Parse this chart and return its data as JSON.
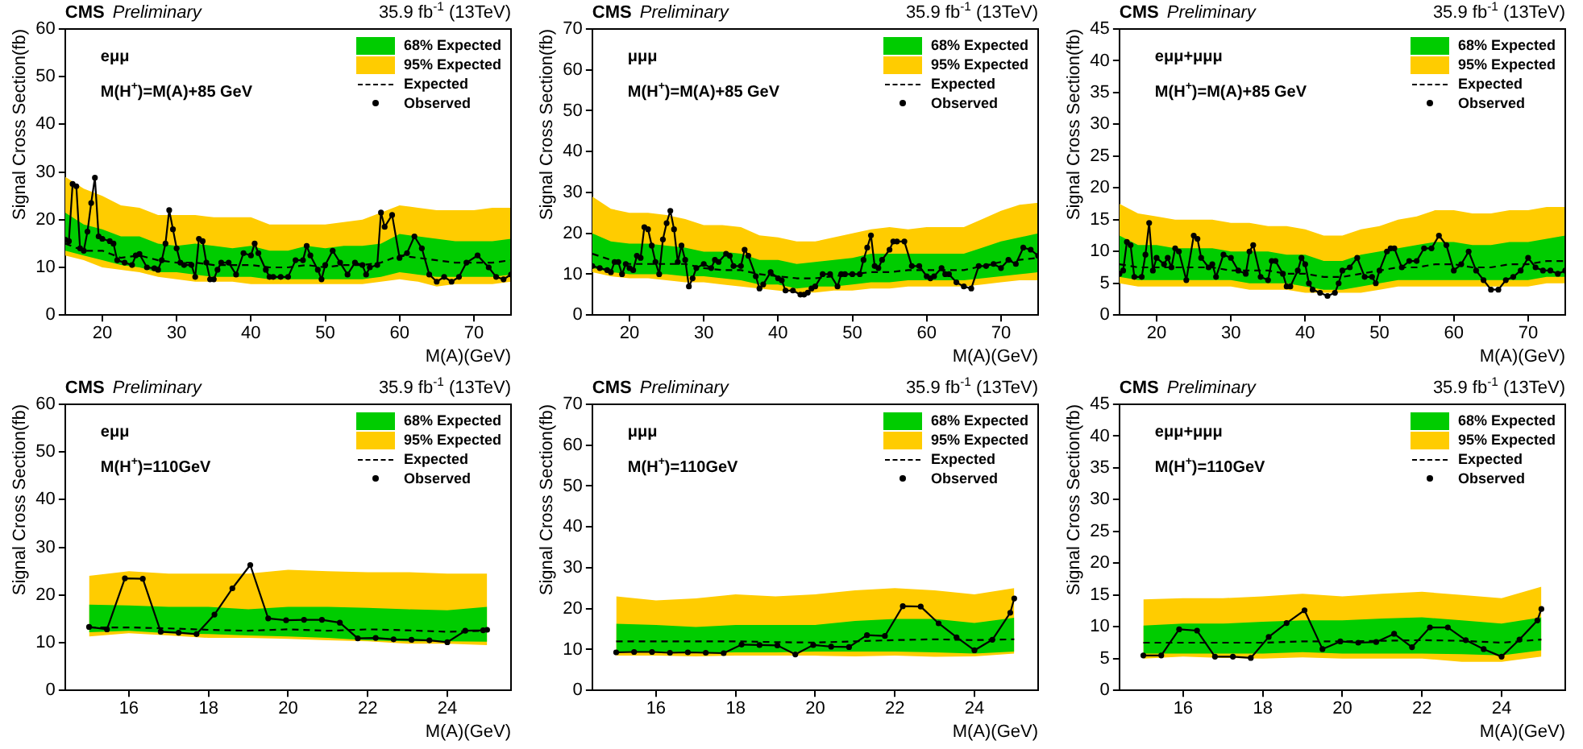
{
  "chart_data": [
    {
      "type": "line",
      "title": "CMS",
      "subtitle": "Preliminary",
      "xlabel": "M(A)(GeV)",
      "ylabel": "Signal Cross Section(fb)",
      "annotations": [
        "35.9 fb$^{-1}$ (13TeV)",
        "eμμ",
        "M(H$^{+}$)=M(A)+85 GeV"
      ],
      "xlim": [
        15,
        75
      ],
      "xticks": [
        20,
        30,
        40,
        50,
        60,
        70
      ],
      "ylim": [
        0,
        60
      ],
      "yticks": [
        0,
        10,
        20,
        30,
        40,
        50,
        60
      ],
      "grid": false,
      "legend": "top right",
      "series": [
        {
          "name": "68% Expected",
          "type": "line",
          "color": "#00cc00",
          "x": [
            15,
            17.5,
            20,
            22.5,
            25,
            27.5,
            30,
            32.5,
            35,
            37.5,
            40,
            42.5,
            45,
            47.5,
            50,
            52.5,
            55,
            57.5,
            60,
            62.5,
            65,
            67.5,
            70,
            72.5,
            75
          ],
          "values": [
            null,
            null,
            null,
            null,
            null,
            null,
            null,
            null,
            null,
            null,
            null,
            null,
            null,
            null,
            null,
            null,
            null,
            null,
            null,
            null,
            null,
            null,
            null,
            null,
            null
          ],
          "lower": [
            13.5,
            12.5,
            11.5,
            10.5,
            10,
            9,
            9,
            8.5,
            8,
            8,
            8,
            7.5,
            7.5,
            7.5,
            7.5,
            7.5,
            7.5,
            8,
            9,
            8.5,
            8,
            8,
            8,
            8,
            8.5
          ],
          "upper": [
            21.5,
            19,
            18,
            16.5,
            16.5,
            15,
            14.5,
            15,
            14.5,
            14,
            14.5,
            13.5,
            13.5,
            14.5,
            14,
            14.5,
            14.5,
            15,
            17,
            16.5,
            16,
            15.5,
            15.5,
            15.5,
            16
          ]
        },
        {
          "name": "95% Expected",
          "type": "line",
          "color": "#ffcc00",
          "x": [
            15,
            17.5,
            20,
            22.5,
            25,
            27.5,
            30,
            32.5,
            35,
            37.5,
            40,
            42.5,
            45,
            47.5,
            50,
            52.5,
            55,
            57.5,
            60,
            62.5,
            65,
            67.5,
            70,
            72.5,
            75
          ],
          "values": [
            null,
            null,
            null,
            null,
            null,
            null,
            null,
            null,
            null,
            null,
            null,
            null,
            null,
            null,
            null,
            null,
            null,
            null,
            null,
            null,
            null,
            null,
            null,
            null,
            null
          ],
          "lower": [
            12.5,
            11.5,
            10,
            9.5,
            9,
            8,
            7.5,
            7,
            7,
            7,
            6.5,
            6.5,
            6.5,
            6.5,
            6.5,
            6.5,
            6.5,
            7,
            7.5,
            7,
            6,
            6.5,
            6.5,
            6.5,
            7
          ],
          "upper": [
            29,
            26.5,
            25,
            23,
            22.5,
            21,
            21,
            21,
            20.5,
            20.5,
            20.5,
            19,
            19,
            19,
            19,
            19.5,
            20,
            21.5,
            23,
            22.5,
            22,
            22,
            22,
            22.5,
            22.5
          ]
        },
        {
          "name": "Expected",
          "type": "line",
          "color": "#000000",
          "line_style": "dashed",
          "marker": "none",
          "x": [
            15,
            17.5,
            20,
            22.5,
            25,
            27.5,
            30,
            32.5,
            35,
            37.5,
            40,
            42.5,
            45,
            47.5,
            50,
            52.5,
            55,
            57.5,
            60,
            62.5,
            65,
            67.5,
            70,
            72.5,
            75
          ],
          "values": [
            15,
            13.5,
            13.5,
            12,
            12.5,
            11.5,
            11,
            11,
            10.5,
            10.5,
            10.5,
            10,
            10,
            10.5,
            10,
            10.5,
            10.5,
            11,
            12.5,
            12,
            11.5,
            11,
            11,
            11,
            11.5
          ]
        },
        {
          "name": "Observed",
          "type": "line",
          "color": "#000000",
          "line_style": "solid",
          "marker": "circle",
          "x": [
            15,
            15.5,
            16,
            16.5,
            17,
            17.5,
            18,
            18.5,
            19,
            19.5,
            20,
            21,
            21.5,
            22,
            23,
            24,
            24.5,
            25,
            26,
            27,
            27.5,
            28,
            28.5,
            29,
            29.5,
            30,
            30.5,
            31,
            32,
            32.5,
            33,
            33.5,
            34,
            34.5,
            35,
            35.5,
            36,
            37,
            38,
            39,
            40,
            40.5,
            41,
            42,
            42.5,
            43,
            44,
            45,
            46,
            47,
            47.5,
            48,
            49,
            49.5,
            50,
            51,
            52,
            53,
            54,
            55,
            55.5,
            56,
            57,
            57.5,
            58,
            59,
            60,
            61,
            62,
            63,
            64,
            65,
            66,
            67,
            68,
            69,
            70.5,
            72,
            73,
            74,
            75
          ],
          "values": [
            15.8,
            15.5,
            27.5,
            27,
            14,
            13.5,
            17.5,
            23.5,
            28.8,
            16.5,
            16,
            15.5,
            15,
            11.5,
            11,
            10.5,
            12.5,
            12.8,
            10,
            9.8,
            9.5,
            11.5,
            15,
            22,
            18,
            14,
            11,
            10.5,
            10.5,
            8,
            16,
            15.5,
            11,
            7.5,
            7.5,
            9.5,
            11,
            11,
            8.5,
            13,
            12.5,
            15,
            13,
            9.5,
            8,
            8,
            8,
            8,
            11.5,
            11.5,
            14.5,
            12.5,
            9.5,
            7.5,
            10.5,
            13.5,
            11,
            8.5,
            11,
            10.5,
            8.5,
            10,
            10.5,
            21.5,
            18.5,
            21,
            12,
            13,
            16.5,
            14,
            8.5,
            7,
            8,
            7,
            8,
            11,
            12.5,
            10,
            8,
            7.5,
            8.5
          ]
        }
      ]
    },
    {
      "type": "line",
      "title": "CMS",
      "subtitle": "Preliminary",
      "xlabel": "M(A)(GeV)",
      "ylabel": "Signal Cross Section(fb)",
      "annotations": [
        "35.9 fb$^{-1}$ (13TeV)",
        "μμμ",
        "M(H$^{+}$)=M(A)+85 GeV"
      ],
      "xlim": [
        15,
        75
      ],
      "xticks": [
        20,
        30,
        40,
        50,
        60,
        70
      ],
      "ylim": [
        0,
        70
      ],
      "yticks": [
        0,
        10,
        20,
        30,
        40,
        50,
        60,
        70
      ],
      "grid": false,
      "legend": "top right",
      "series": [
        {
          "name": "68% Expected",
          "type": "line",
          "color": "#00cc00",
          "x": [
            15,
            17.5,
            20,
            22.5,
            25,
            27.5,
            30,
            32.5,
            35,
            37.5,
            40,
            42.5,
            45,
            47.5,
            50,
            52.5,
            55,
            57.5,
            60,
            62.5,
            65,
            67.5,
            70,
            72.5,
            75
          ],
          "values": [
            null,
            null,
            null,
            null,
            null,
            null,
            null,
            null,
            null,
            null,
            null,
            null,
            null,
            null,
            null,
            null,
            null,
            null,
            null,
            null,
            null,
            null,
            null,
            null,
            null
          ],
          "lower": [
            11.5,
            10.5,
            10,
            10,
            10,
            9.5,
            9.5,
            9,
            8.5,
            7.5,
            7.5,
            6.5,
            7,
            7,
            7.5,
            8,
            8,
            8.5,
            8.5,
            8.5,
            8.5,
            9,
            9.5,
            10,
            10.5
          ],
          "upper": [
            20,
            18,
            17.5,
            17.5,
            17,
            16.5,
            15.5,
            15.5,
            15,
            13.5,
            13.5,
            12.5,
            13,
            13.5,
            14,
            15,
            15,
            15,
            15,
            15,
            15,
            16.5,
            18,
            19,
            20
          ]
        },
        {
          "name": "95% Expected",
          "type": "line",
          "color": "#ffcc00",
          "x": [
            15,
            17.5,
            20,
            22.5,
            25,
            27.5,
            30,
            32.5,
            35,
            37.5,
            40,
            42.5,
            45,
            47.5,
            50,
            52.5,
            55,
            57.5,
            60,
            62.5,
            65,
            67.5,
            70,
            72.5,
            75
          ],
          "values": [
            null,
            null,
            null,
            null,
            null,
            null,
            null,
            null,
            null,
            null,
            null,
            null,
            null,
            null,
            null,
            null,
            null,
            null,
            null,
            null,
            null,
            null,
            null,
            null,
            null
          ],
          "lower": [
            10.5,
            9.5,
            9,
            9,
            8.5,
            8,
            8,
            7.5,
            7,
            6.5,
            6,
            5.5,
            5.5,
            6,
            6,
            6.5,
            6.5,
            7,
            7,
            7,
            7,
            7.5,
            8,
            8.5,
            8.5
          ],
          "upper": [
            29,
            26,
            25,
            25,
            24.5,
            23.5,
            22,
            22,
            21.5,
            19.5,
            19,
            18,
            18,
            19,
            20,
            21,
            21.5,
            21,
            21.5,
            21.5,
            21.5,
            23.5,
            25.5,
            27,
            27.5
          ]
        },
        {
          "name": "Expected",
          "type": "line",
          "color": "#000000",
          "line_style": "dashed",
          "marker": "none",
          "x": [
            15,
            17.5,
            20,
            22.5,
            25,
            27.5,
            30,
            32.5,
            35,
            37.5,
            40,
            42.5,
            45,
            47.5,
            50,
            52.5,
            55,
            57.5,
            60,
            62.5,
            65,
            67.5,
            70,
            72.5,
            75
          ],
          "values": [
            15,
            13.5,
            12.5,
            12.5,
            12.5,
            12.5,
            11.5,
            11,
            11,
            10,
            9.5,
            9,
            9,
            9.5,
            10,
            10.5,
            10.5,
            11,
            11,
            11,
            11,
            12,
            13,
            13.5,
            14
          ]
        },
        {
          "name": "Observed",
          "type": "line",
          "color": "#000000",
          "line_style": "solid",
          "marker": "circle",
          "x": [
            15,
            16,
            17,
            17.5,
            18,
            18.5,
            19,
            19.5,
            20,
            20.5,
            21,
            21.5,
            22,
            22.5,
            23,
            23.5,
            24,
            24.5,
            25,
            25.5,
            26,
            26.5,
            27,
            27.5,
            28,
            28.5,
            29,
            30,
            31,
            31.5,
            32,
            33,
            33.5,
            34,
            35,
            35.5,
            36,
            37,
            37.5,
            38,
            39,
            40,
            40.5,
            41,
            42,
            43,
            43.5,
            44,
            44.5,
            45,
            46,
            47,
            48,
            48.5,
            49,
            50,
            51,
            51.5,
            52,
            52.5,
            53,
            53.5,
            54,
            55,
            55.5,
            56,
            57,
            58,
            59,
            60,
            60.5,
            61,
            62,
            62.5,
            63,
            64,
            65,
            66,
            67,
            68,
            69,
            70,
            71,
            72,
            73,
            74,
            75
          ],
          "values": [
            12,
            11.5,
            11,
            10.5,
            13,
            13,
            10,
            12.5,
            11.5,
            11,
            14.5,
            14,
            21.5,
            21,
            17,
            13,
            10,
            18.5,
            22.5,
            25.5,
            21,
            13,
            17,
            13.5,
            7,
            9,
            11.5,
            12.5,
            11.5,
            13.5,
            13,
            15,
            14.5,
            12,
            12,
            16,
            14.5,
            9.5,
            6.5,
            7.5,
            10.5,
            9,
            8.5,
            6,
            6,
            5,
            5,
            5.5,
            6.5,
            7,
            10,
            10,
            7,
            10,
            10,
            10,
            10,
            13.5,
            16.5,
            19.5,
            12,
            11.5,
            13.5,
            16,
            18,
            18,
            18,
            12,
            12,
            9.5,
            9,
            9.5,
            11.5,
            10,
            10,
            8,
            7,
            6.5,
            12,
            12,
            12.5,
            11.5,
            13.5,
            12.5,
            16.5,
            16,
            14.5
          ]
        }
      ]
    },
    {
      "type": "line",
      "title": "CMS",
      "subtitle": "Preliminary",
      "xlabel": "M(A)(GeV)",
      "ylabel": "Signal Cross Section(fb)",
      "annotations": [
        "35.9 fb$^{-1}$ (13TeV)",
        "eμμ+μμμ",
        "M(H$^{+}$)=M(A)+85 GeV"
      ],
      "xlim": [
        15,
        75
      ],
      "xticks": [
        20,
        30,
        40,
        50,
        60,
        70
      ],
      "ylim": [
        0,
        45
      ],
      "yticks": [
        0,
        5,
        10,
        15,
        20,
        25,
        30,
        35,
        40,
        45
      ],
      "grid": false,
      "legend": "top right",
      "series": [
        {
          "name": "68% Expected",
          "type": "line",
          "color": "#00cc00",
          "x": [
            15,
            17.5,
            20,
            22.5,
            25,
            27.5,
            30,
            32.5,
            35,
            37.5,
            40,
            42.5,
            45,
            47.5,
            50,
            52.5,
            55,
            57.5,
            60,
            62.5,
            65,
            67.5,
            70,
            72.5,
            75
          ],
          "values": [
            null,
            null,
            null,
            null,
            null,
            null,
            null,
            null,
            null,
            null,
            null,
            null,
            null,
            null,
            null,
            null,
            null,
            null,
            null,
            null,
            null,
            null,
            null,
            null,
            null
          ],
          "lower": [
            6,
            5.5,
            5.5,
            5.5,
            5.5,
            5.5,
            5.5,
            5,
            5,
            5,
            4.5,
            4,
            4,
            4.5,
            5,
            5.5,
            5.5,
            5.5,
            5.5,
            5.5,
            5.5,
            5.5,
            5.5,
            6,
            6
          ],
          "upper": [
            12.5,
            11,
            11,
            10.5,
            10.5,
            10.5,
            10,
            10,
            10,
            9.5,
            9.5,
            8.5,
            8.5,
            9.5,
            10,
            10.5,
            11,
            11.5,
            11.5,
            11,
            11,
            11.5,
            11.5,
            12,
            12.5
          ]
        },
        {
          "name": "95% Expected",
          "type": "line",
          "color": "#ffcc00",
          "x": [
            15,
            17.5,
            20,
            22.5,
            25,
            27.5,
            30,
            32.5,
            35,
            37.5,
            40,
            42.5,
            45,
            47.5,
            50,
            52.5,
            55,
            57.5,
            60,
            62.5,
            65,
            67.5,
            70,
            72.5,
            75
          ],
          "values": [
            null,
            null,
            null,
            null,
            null,
            null,
            null,
            null,
            null,
            null,
            null,
            null,
            null,
            null,
            null,
            null,
            null,
            null,
            null,
            null,
            null,
            null,
            null,
            null,
            null
          ],
          "lower": [
            5,
            4.5,
            4.5,
            4.5,
            4.5,
            4.5,
            4.5,
            4,
            4,
            4,
            3.5,
            3.5,
            3.5,
            3.5,
            4,
            4.5,
            4.5,
            4.5,
            4.5,
            4.5,
            4.5,
            4.5,
            4.5,
            5,
            5
          ],
          "upper": [
            17.5,
            16,
            15.5,
            15,
            15,
            15,
            14.5,
            14.5,
            14,
            14,
            13.5,
            12.5,
            12.5,
            13.5,
            14,
            15,
            15.5,
            16.5,
            16.5,
            16,
            16,
            16.5,
            16.5,
            17,
            17
          ]
        },
        {
          "name": "Expected",
          "type": "line",
          "color": "#000000",
          "line_style": "dashed",
          "marker": "none",
          "x": [
            15,
            17.5,
            20,
            22.5,
            25,
            27.5,
            30,
            32.5,
            35,
            37.5,
            40,
            42.5,
            45,
            47.5,
            50,
            52.5,
            55,
            57.5,
            60,
            62.5,
            65,
            67.5,
            70,
            72.5,
            75
          ],
          "values": [
            8,
            7.5,
            7.5,
            7.5,
            7.5,
            7.5,
            7,
            7,
            7,
            6.5,
            6.5,
            6,
            6,
            6.5,
            7,
            7.5,
            7.5,
            8,
            8,
            7.5,
            7.5,
            8,
            8,
            8.5,
            8.5
          ]
        },
        {
          "name": "Observed",
          "type": "line",
          "color": "#000000",
          "line_style": "solid",
          "marker": "circle",
          "x": [
            15,
            15.5,
            16,
            16.5,
            17,
            18,
            18.5,
            19,
            19.5,
            20,
            21,
            21.5,
            22,
            22.5,
            23,
            24,
            25,
            25.5,
            26,
            27,
            27.5,
            28,
            29,
            30,
            31,
            32,
            32.5,
            33,
            34,
            35,
            35.5,
            36,
            37,
            37.5,
            38,
            39,
            39.5,
            40,
            40.5,
            41,
            42,
            43,
            44,
            44.5,
            45,
            46,
            47,
            48,
            49,
            49.5,
            50,
            51,
            51.5,
            52,
            53,
            54,
            55,
            56,
            57,
            58,
            59,
            60,
            61,
            62,
            63,
            64,
            65,
            66,
            67,
            68,
            69,
            70,
            71,
            72,
            73,
            74,
            75
          ],
          "values": [
            6.5,
            7,
            11.5,
            11,
            6,
            6,
            9.5,
            14.5,
            7,
            9,
            8,
            9,
            7.5,
            10.5,
            10,
            5.5,
            12.5,
            12,
            9,
            7.5,
            8,
            6,
            9.5,
            9,
            7,
            6.5,
            10,
            11,
            6,
            5.5,
            8.5,
            8.5,
            6.5,
            4.5,
            4.5,
            7,
            9,
            8,
            5,
            4,
            3.5,
            3,
            3.5,
            5,
            7,
            7.5,
            9,
            6,
            6,
            5,
            7,
            10,
            10.5,
            10.5,
            7.5,
            8.5,
            8.5,
            10.5,
            10.5,
            12.5,
            11,
            7,
            8,
            10,
            7,
            5.5,
            4,
            4,
            5.5,
            6,
            7,
            9,
            7.5,
            7,
            7,
            6.5,
            7
          ]
        }
      ]
    },
    {
      "type": "line",
      "title": "CMS",
      "subtitle": "Preliminary",
      "xlabel": "M(A)(GeV)",
      "ylabel": "Signal Cross Section(fb)",
      "annotations": [
        "35.9 fb$^{-1}$ (13TeV)",
        "eμμ",
        "M(H$^{+}$)=110GeV"
      ],
      "xlim": [
        14.4,
        25.6
      ],
      "xticks": [
        16,
        18,
        20,
        22,
        24
      ],
      "ylim": [
        0,
        60
      ],
      "yticks": [
        0,
        10,
        20,
        30,
        40,
        50,
        60
      ],
      "grid": false,
      "legend": "top right",
      "series": [
        {
          "name": "68% Expected",
          "type": "line",
          "color": "#00cc00",
          "x": [
            15,
            16,
            17,
            18,
            19,
            20,
            21,
            22,
            23,
            24,
            25
          ],
          "values": [
            null,
            null,
            null,
            null,
            null,
            null,
            null,
            null,
            null,
            null,
            null
          ],
          "lower": [
            12.2,
            12.5,
            12,
            11.8,
            11.5,
            11.3,
            11,
            10.5,
            10.3,
            10.3,
            10.2
          ],
          "upper": [
            18,
            17.8,
            17.5,
            17.5,
            17,
            17.5,
            17.5,
            17.3,
            17,
            16.8,
            17.5
          ]
        },
        {
          "name": "95% Expected",
          "type": "line",
          "color": "#ffcc00",
          "x": [
            15,
            16,
            17,
            18,
            19,
            20,
            21,
            22,
            23,
            24,
            25
          ],
          "values": [
            null,
            null,
            null,
            null,
            null,
            null,
            null,
            null,
            null,
            null,
            null
          ],
          "lower": [
            11.3,
            12,
            11.5,
            11,
            11,
            10.8,
            10.5,
            10.3,
            9.8,
            9.8,
            9.5
          ],
          "upper": [
            24,
            25,
            24.5,
            24.5,
            24.5,
            25.3,
            25,
            24.8,
            24.8,
            24.5,
            24.5
          ]
        },
        {
          "name": "Expected",
          "type": "line",
          "color": "#000000",
          "line_style": "dashed",
          "marker": "none",
          "x": [
            15,
            16,
            17,
            18,
            19,
            20,
            21,
            22,
            23,
            24,
            25
          ],
          "values": [
            13.2,
            13.2,
            13,
            12.7,
            12.5,
            12.8,
            12.5,
            12.8,
            12.6,
            12.3,
            12.5
          ]
        },
        {
          "name": "Observed",
          "type": "line",
          "color": "#000000",
          "line_style": "solid",
          "marker": "circle",
          "x": [
            15,
            15.45,
            15.9,
            16.35,
            16.8,
            17.25,
            17.7,
            18.15,
            18.6,
            19.05,
            19.5,
            19.95,
            20.4,
            20.85,
            21.3,
            21.75,
            22.2,
            22.65,
            23.1,
            23.55,
            24,
            24.45,
            24.9,
            25
          ],
          "values": [
            13.3,
            12.8,
            23.5,
            23.4,
            12.3,
            12.1,
            11.8,
            15.9,
            21.4,
            26.3,
            15.1,
            14.7,
            14.8,
            14.8,
            14.2,
            10.9,
            11,
            10.7,
            10.6,
            10.5,
            10.1,
            12.5,
            12.6,
            12.7
          ]
        }
      ]
    },
    {
      "type": "line",
      "title": "CMS",
      "subtitle": "Preliminary",
      "xlabel": "M(A)(GeV)",
      "ylabel": "Signal Cross Section(fb)",
      "annotations": [
        "35.9 fb$^{-1}$ (13TeV)",
        "μμμ",
        "M(H$^{+}$)=110GeV"
      ],
      "xlim": [
        14.4,
        25.6
      ],
      "xticks": [
        16,
        18,
        20,
        22,
        24
      ],
      "ylim": [
        0,
        70
      ],
      "yticks": [
        0,
        10,
        20,
        30,
        40,
        50,
        60,
        70
      ],
      "grid": false,
      "legend": "top right",
      "series": [
        {
          "name": "68% Expected",
          "type": "line",
          "color": "#00cc00",
          "x": [
            15,
            16,
            17,
            18,
            19,
            20,
            21,
            22,
            23,
            24,
            25
          ],
          "values": [
            null,
            null,
            null,
            null,
            null,
            null,
            null,
            null,
            null,
            null,
            null
          ],
          "lower": [
            9.3,
            9.5,
            9.2,
            9.3,
            9.3,
            9.5,
            9.5,
            9.5,
            9.3,
            9,
            9.5
          ],
          "upper": [
            16.3,
            16,
            15.5,
            16,
            16,
            16,
            17,
            17.5,
            17.5,
            16.5,
            17.8
          ]
        },
        {
          "name": "95% Expected",
          "type": "line",
          "color": "#ffcc00",
          "x": [
            15,
            16,
            17,
            18,
            19,
            20,
            21,
            22,
            23,
            24,
            25
          ],
          "values": [
            null,
            null,
            null,
            null,
            null,
            null,
            null,
            null,
            null,
            null,
            null
          ],
          "lower": [
            8.5,
            8.5,
            8.3,
            8.5,
            8.5,
            8.5,
            8.3,
            8.5,
            8.2,
            8.3,
            9
          ],
          "upper": [
            23,
            22,
            22.5,
            23.5,
            23,
            23.5,
            24.5,
            25,
            24.5,
            23.5,
            25
          ]
        },
        {
          "name": "Expected",
          "type": "line",
          "color": "#000000",
          "line_style": "dashed",
          "marker": "none",
          "x": [
            15,
            16,
            17,
            18,
            19,
            20,
            21,
            22,
            23,
            24,
            25
          ],
          "values": [
            12,
            12,
            12,
            12,
            11.8,
            11.7,
            12,
            12.3,
            12.5,
            12.3,
            12.5
          ]
        },
        {
          "name": "Observed",
          "type": "line",
          "color": "#000000",
          "line_style": "solid",
          "marker": "circle",
          "x": [
            15,
            15.45,
            15.9,
            16.35,
            16.8,
            17.25,
            17.7,
            18.15,
            18.6,
            19.05,
            19.5,
            19.95,
            20.4,
            20.85,
            21.3,
            21.75,
            22.2,
            22.65,
            23.1,
            23.55,
            24,
            24.45,
            24.9,
            25
          ],
          "values": [
            9.3,
            9.4,
            9.4,
            9.2,
            9.3,
            9.2,
            9.1,
            11.2,
            11.1,
            11,
            8.8,
            11.1,
            10.7,
            10.6,
            13.5,
            13.3,
            20.6,
            20.5,
            16.4,
            13,
            9.8,
            12.4,
            19,
            22.5
          ]
        }
      ]
    },
    {
      "type": "line",
      "title": "CMS",
      "subtitle": "Preliminary",
      "xlabel": "M(A)(GeV)",
      "ylabel": "Signal Cross Section(fb)",
      "annotations": [
        "35.9 fb$^{-1}$ (13TeV)",
        "eμμ+μμμ",
        "M(H$^{+}$)=110GeV"
      ],
      "xlim": [
        14.4,
        25.6
      ],
      "xticks": [
        16,
        18,
        20,
        22,
        24
      ],
      "ylim": [
        0,
        45
      ],
      "yticks": [
        0,
        5,
        10,
        15,
        20,
        25,
        30,
        35,
        40,
        45
      ],
      "grid": false,
      "legend": "top right",
      "series": [
        {
          "name": "68% Expected",
          "type": "line",
          "color": "#00cc00",
          "x": [
            15,
            16,
            17,
            18,
            19,
            20,
            21,
            22,
            23,
            24,
            25
          ],
          "values": [
            null,
            null,
            null,
            null,
            null,
            null,
            null,
            null,
            null,
            null,
            null
          ],
          "lower": [
            5.8,
            5.8,
            5.8,
            5.8,
            6,
            5.8,
            5.8,
            5.8,
            5.7,
            5.5,
            6.3
          ],
          "upper": [
            10.2,
            10.5,
            10.5,
            10.8,
            11,
            11,
            11.3,
            11.5,
            11,
            10.5,
            11.5
          ]
        },
        {
          "name": "95% Expected",
          "type": "line",
          "color": "#ffcc00",
          "x": [
            15,
            16,
            17,
            18,
            19,
            20,
            21,
            22,
            23,
            24,
            25
          ],
          "values": [
            null,
            null,
            null,
            null,
            null,
            null,
            null,
            null,
            null,
            null,
            null
          ],
          "lower": [
            5,
            5.3,
            5.1,
            5,
            5.2,
            5,
            5,
            5,
            4.5,
            4.5,
            5.3
          ],
          "upper": [
            14.3,
            14.5,
            14.5,
            14.8,
            15.2,
            14.8,
            15.2,
            15.5,
            15,
            14.5,
            16.3
          ]
        },
        {
          "name": "Expected",
          "type": "line",
          "color": "#000000",
          "line_style": "dashed",
          "marker": "none",
          "x": [
            15,
            16,
            17,
            18,
            19,
            20,
            21,
            22,
            23,
            24,
            25
          ],
          "values": [
            7.5,
            7.5,
            7.5,
            7.5,
            7.7,
            7.7,
            7.8,
            7.9,
            7.8,
            7.5,
            8
          ]
        },
        {
          "name": "Observed",
          "type": "line",
          "color": "#000000",
          "line_style": "solid",
          "marker": "circle",
          "x": [
            15,
            15.45,
            15.9,
            16.35,
            16.8,
            17.25,
            17.7,
            18.15,
            18.6,
            19.05,
            19.5,
            19.95,
            20.4,
            20.85,
            21.3,
            21.75,
            22.2,
            22.65,
            23.1,
            23.55,
            24,
            24.45,
            24.9,
            25
          ],
          "values": [
            5.5,
            5.5,
            9.6,
            9.4,
            5.3,
            5.3,
            5.1,
            8.4,
            10.6,
            12.6,
            6.5,
            7.7,
            7.5,
            7.6,
            8.9,
            6.8,
            9.9,
            9.9,
            7.9,
            6.5,
            5.3,
            8,
            11,
            12.8
          ]
        }
      ]
    }
  ]
}
